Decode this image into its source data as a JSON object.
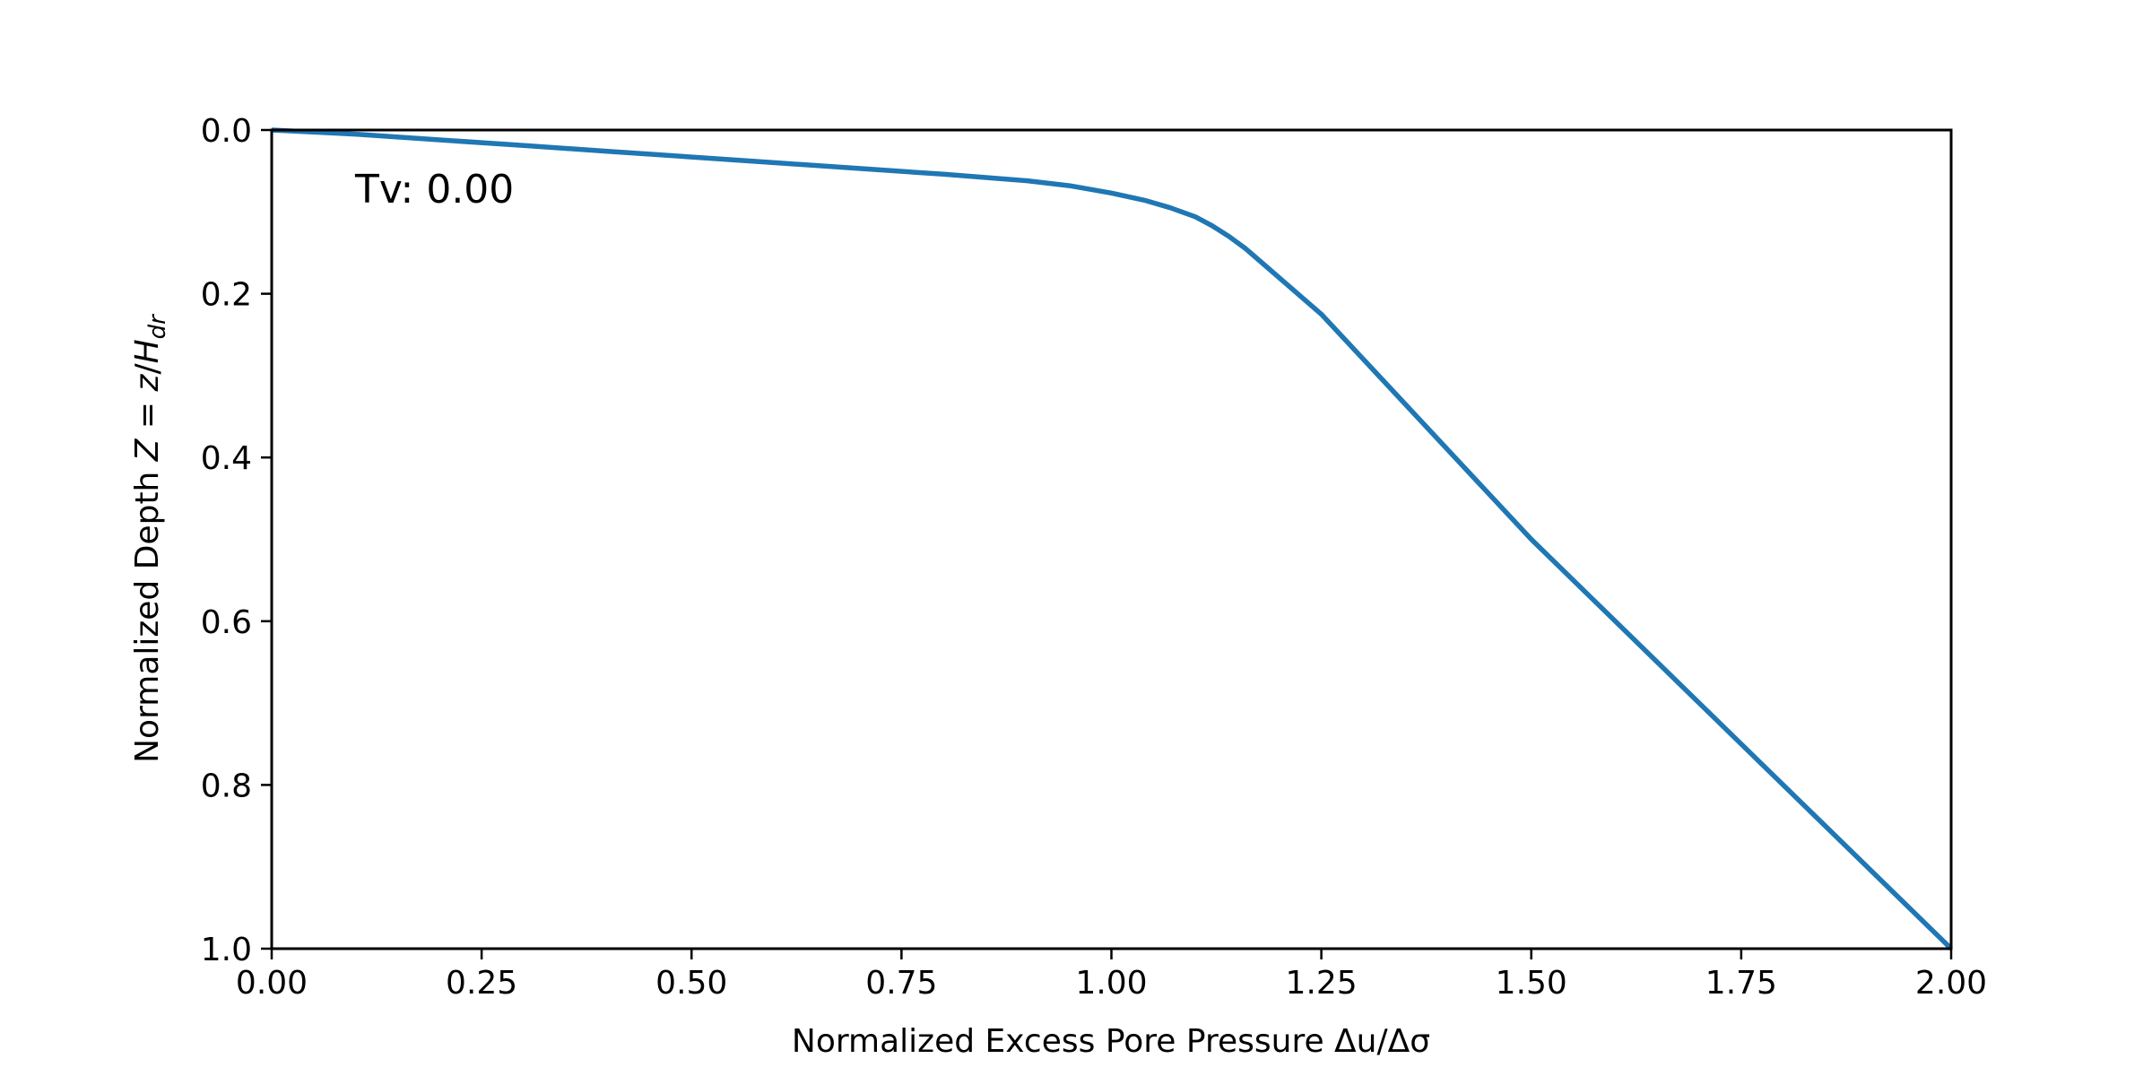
{
  "chart_data": {
    "type": "line",
    "title": "",
    "xlabel": "Normalized Excess Pore Pressure Δu/Δσ",
    "ylabel": "Normalized Depth Z = z/H_dr",
    "ylabel_parts": {
      "main": "Normalized Depth ",
      "Z": "Z",
      "eq": " = ",
      "z": "z",
      "slash": "/",
      "H": "H",
      "sub": "dr"
    },
    "xlim": [
      0.0,
      2.0
    ],
    "ylim": [
      1.0,
      0.0
    ],
    "y_inverted": true,
    "grid": false,
    "x_ticks": [
      "0.00",
      "0.25",
      "0.50",
      "0.75",
      "1.00",
      "1.25",
      "1.50",
      "1.75",
      "2.00"
    ],
    "y_ticks": [
      "0.0",
      "0.2",
      "0.4",
      "0.6",
      "0.8",
      "1.0"
    ],
    "annotation": "Tv: 0.00",
    "series": [
      {
        "color": "#1f77b4",
        "x": [
          0.0,
          0.1,
          0.2,
          0.3,
          0.4,
          0.5,
          0.6,
          0.7,
          0.8,
          0.9,
          0.95,
          1.0,
          1.04,
          1.07,
          1.1,
          1.12,
          1.14,
          1.16,
          1.25,
          1.5,
          1.75,
          2.0
        ],
        "y": [
          0.0,
          0.005,
          0.012,
          0.019,
          0.026,
          0.033,
          0.04,
          0.047,
          0.054,
          0.062,
          0.068,
          0.077,
          0.086,
          0.095,
          0.106,
          0.117,
          0.13,
          0.145,
          0.225,
          0.5,
          0.75,
          1.0
        ]
      }
    ]
  }
}
